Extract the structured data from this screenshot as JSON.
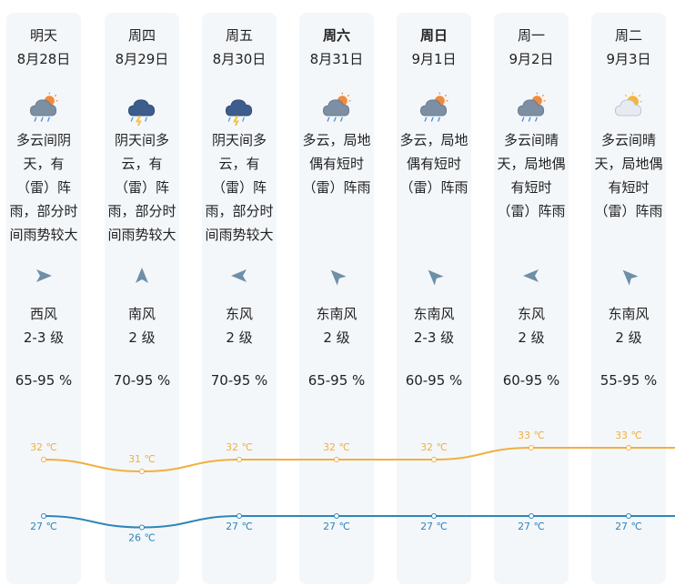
{
  "days": [
    {
      "weekday": "明天",
      "date": "8月28日",
      "icon": "cloudy-rain-icon",
      "desc": [
        "多云间阴",
        "天，有",
        "（雷）阵",
        "雨，部分时",
        "间雨势较大"
      ],
      "wind_dir": "西风",
      "wind_level": "2-3 级",
      "wind_icon": "arrow-east-icon",
      "humidity": "65-95 %"
    },
    {
      "weekday": "周四",
      "date": "8月29日",
      "icon": "thunderstorm-icon",
      "desc": [
        "阴天间多",
        "云，有",
        "（雷）阵",
        "雨，部分时",
        "间雨势较大"
      ],
      "wind_dir": "南风",
      "wind_level": "2 级",
      "wind_icon": "arrow-north-icon",
      "humidity": "70-95 %"
    },
    {
      "weekday": "周五",
      "date": "8月30日",
      "icon": "thunderstorm-icon",
      "desc": [
        "阴天间多",
        "云，有",
        "（雷）阵",
        "雨，部分时",
        "间雨势较大"
      ],
      "wind_dir": "东风",
      "wind_level": "2 级",
      "wind_icon": "arrow-west-icon",
      "humidity": "70-95 %"
    },
    {
      "weekday": "周六",
      "date": "8月31日",
      "icon": "cloudy-rain-icon",
      "desc": [
        "多云，局地",
        "偶有短时",
        "（雷）阵雨"
      ],
      "wind_dir": "东南风",
      "wind_level": "2 级",
      "wind_icon": "arrow-northwest-icon",
      "humidity": "65-95 %"
    },
    {
      "weekday": "周日",
      "date": "9月1日",
      "icon": "cloudy-rain-icon",
      "desc": [
        "多云，局地",
        "偶有短时",
        "（雷）阵雨"
      ],
      "wind_dir": "东南风",
      "wind_level": "2-3 级",
      "wind_icon": "arrow-northwest-icon",
      "humidity": "60-95 %"
    },
    {
      "weekday": "周一",
      "date": "9月2日",
      "icon": "cloudy-rain-icon",
      "desc": [
        "多云间晴",
        "天，局地偶",
        "有短时",
        "（雷）阵雨"
      ],
      "wind_dir": "东风",
      "wind_level": "2 级",
      "wind_icon": "arrow-west-icon",
      "humidity": "60-95 %"
    },
    {
      "weekday": "周二",
      "date": "9月3日",
      "icon": "partly-cloudy-icon",
      "desc": [
        "多云间晴",
        "天，局地偶",
        "有短时",
        "（雷）阵雨"
      ],
      "wind_dir": "东南风",
      "wind_level": "2 级",
      "wind_icon": "arrow-northwest-icon",
      "humidity": "55-95 %"
    }
  ],
  "temperature": {
    "high": [
      32,
      31,
      32,
      32,
      32,
      33,
      33
    ],
    "low": [
      27,
      26,
      27,
      27,
      27,
      27,
      27
    ],
    "high_labels": [
      "32 ℃",
      "31 ℃",
      "32 ℃",
      "32 ℃",
      "32 ℃",
      "33 ℃",
      "33 ℃"
    ],
    "low_labels": [
      "27 ℃",
      "26 ℃",
      "27 ℃",
      "27 ℃",
      "27 ℃",
      "27 ℃",
      "27 ℃"
    ],
    "high_color": "#f0b040",
    "low_color": "#2f86b8"
  },
  "colors": {
    "bold_weekdays": [
      "周六",
      "周日"
    ],
    "column_bg": "#f4f7fa"
  }
}
